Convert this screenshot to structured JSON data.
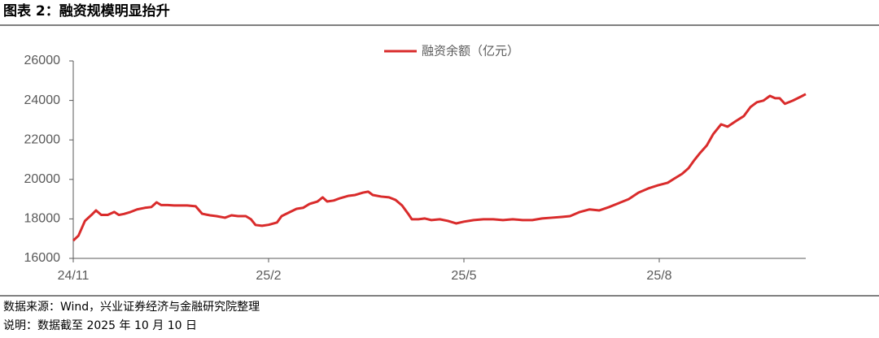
{
  "header": {
    "title": "图表 2：融资规模明显抬升"
  },
  "chart_data": {
    "type": "line",
    "x": [
      0,
      0.08,
      0.18,
      0.28,
      0.35,
      0.43,
      0.53,
      0.63,
      0.7,
      0.78,
      0.88,
      0.98,
      1.1,
      1.2,
      1.28,
      1.35,
      1.45,
      1.55,
      1.65,
      1.75,
      1.88,
      1.98,
      2.1,
      2.2,
      2.33,
      2.43,
      2.53,
      2.65,
      2.73,
      2.8,
      2.9,
      3.0,
      3.13,
      3.2,
      3.33,
      3.43,
      3.53,
      3.63,
      3.75,
      3.83,
      3.9,
      4.0,
      4.1,
      4.23,
      4.33,
      4.45,
      4.53,
      4.6,
      4.73,
      4.85,
      4.95,
      5.05,
      5.15,
      5.2,
      5.3,
      5.4,
      5.5,
      5.63,
      5.75,
      5.88,
      6.0,
      6.15,
      6.3,
      6.45,
      6.6,
      6.75,
      6.9,
      7.05,
      7.2,
      7.35,
      7.5,
      7.63,
      7.78,
      7.93,
      8.08,
      8.23,
      8.38,
      8.53,
      8.68,
      8.83,
      8.98,
      9.13,
      9.23,
      9.35,
      9.45,
      9.53,
      9.63,
      9.73,
      9.83,
      9.95,
      10.05,
      10.18,
      10.3,
      10.4,
      10.5,
      10.6,
      10.7,
      10.78,
      10.85,
      10.93,
      11.05,
      11.18,
      11.25
    ],
    "series": [
      {
        "name": "融资余额（亿元）",
        "color": "#d92b2b",
        "values": [
          16900,
          17150,
          17900,
          18200,
          18430,
          18200,
          18200,
          18350,
          18200,
          18250,
          18350,
          18480,
          18560,
          18600,
          18840,
          18700,
          18700,
          18680,
          18680,
          18680,
          18640,
          18260,
          18180,
          18140,
          18060,
          18180,
          18140,
          18140,
          17980,
          17690,
          17650,
          17700,
          17820,
          18140,
          18350,
          18510,
          18560,
          18760,
          18880,
          19090,
          18880,
          18930,
          19050,
          19170,
          19210,
          19330,
          19380,
          19210,
          19130,
          19090,
          18960,
          18680,
          18230,
          17980,
          17980,
          18020,
          17940,
          17980,
          17900,
          17770,
          17860,
          17940,
          17980,
          17980,
          17940,
          17980,
          17940,
          17940,
          18020,
          18060,
          18100,
          18140,
          18350,
          18480,
          18430,
          18600,
          18800,
          19000,
          19330,
          19540,
          19700,
          19830,
          20040,
          20280,
          20570,
          20940,
          21350,
          21720,
          22300,
          22790,
          22670,
          22960,
          23210,
          23660,
          23910,
          23990,
          24230,
          24110,
          24110,
          23830,
          23990,
          24200,
          24320
        ]
      }
    ],
    "xlim": [
      0,
      11.25
    ],
    "xticks": [
      {
        "value": 0,
        "label": "24/11"
      },
      {
        "value": 3,
        "label": "25/2"
      },
      {
        "value": 6,
        "label": "25/5"
      },
      {
        "value": 9,
        "label": "25/8"
      }
    ],
    "ylim": [
      16000,
      26000
    ],
    "yticks": [
      16000,
      18000,
      20000,
      22000,
      24000,
      26000
    ],
    "legend": "top"
  },
  "footer": {
    "source": "数据来源：Wind，兴业证券经济与金融研究院整理",
    "note": "说明：数据截至 2025 年 10 月 10 日"
  }
}
